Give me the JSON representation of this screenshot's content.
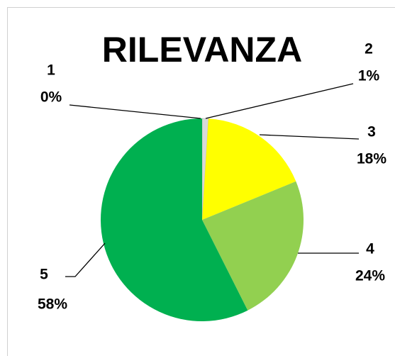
{
  "chart_data": {
    "type": "pie",
    "title": "RILEVANZA",
    "categories": [
      "1",
      "2",
      "3",
      "4",
      "5"
    ],
    "values": [
      0,
      1,
      18,
      24,
      58
    ],
    "value_labels": [
      "0%",
      "1%",
      "18%",
      "24%",
      "58%"
    ],
    "colors": [
      "#bfbfbf",
      "#d9d9d9",
      "#ffff00",
      "#92d050",
      "#00b050"
    ]
  }
}
